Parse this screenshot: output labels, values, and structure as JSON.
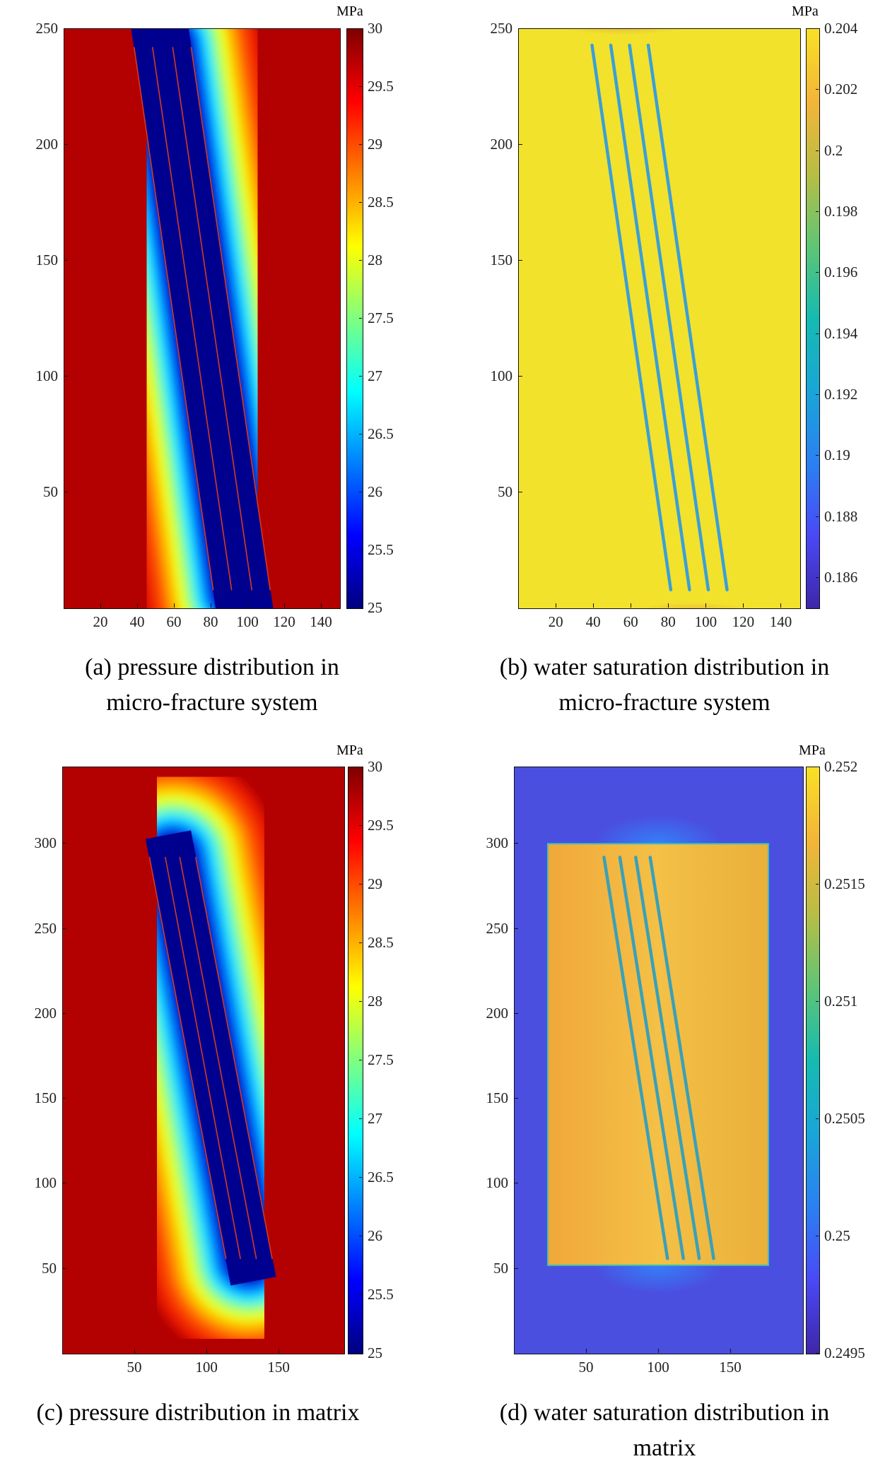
{
  "chart_data": [
    {
      "id": "a",
      "type": "heatmap",
      "caption": [
        "(a) pressure distribution in",
        "micro-fracture system"
      ],
      "colorbar_unit": "MPa",
      "colormap": "jet",
      "x_ticks": [
        20,
        40,
        60,
        80,
        100,
        120,
        140
      ],
      "y_ticks": [
        50,
        100,
        150,
        200,
        250
      ],
      "xlim": [
        0,
        150
      ],
      "ylim": [
        0,
        250
      ],
      "clim": [
        25,
        30
      ],
      "colorbar_ticks": [
        "25",
        "25.5",
        "26",
        "26.5",
        "27",
        "27.5",
        "28",
        "28.5",
        "29",
        "29.5",
        "30"
      ],
      "field": {
        "background_value": 30,
        "near_value": 25,
        "transition_width": 28
      },
      "fractures": [
        {
          "x1": 38,
          "y1": 242,
          "x2": 81,
          "y2": 8
        },
        {
          "x1": 48,
          "y1": 242,
          "x2": 91,
          "y2": 8
        },
        {
          "x1": 59,
          "y1": 242,
          "x2": 102,
          "y2": 8
        },
        {
          "x1": 69,
          "y1": 242,
          "x2": 112,
          "y2": 8
        }
      ],
      "fracture_color": "#d43a1e"
    },
    {
      "id": "b",
      "type": "heatmap",
      "caption": [
        "(b) water saturation distribution in",
        "micro-fracture system"
      ],
      "colorbar_unit": "MPa",
      "colormap": "parula",
      "x_ticks": [
        20,
        40,
        60,
        80,
        100,
        120,
        140
      ],
      "y_ticks": [
        50,
        100,
        150,
        200,
        250
      ],
      "xlim": [
        0,
        150
      ],
      "ylim": [
        0,
        250
      ],
      "clim": [
        0.185,
        0.204
      ],
      "colorbar_ticks": [
        "0.186",
        "0.188",
        "0.19",
        "0.192",
        "0.194",
        "0.196",
        "0.198",
        "0.2",
        "0.202",
        "0.204"
      ],
      "colorbar_tick_values": [
        0.186,
        0.188,
        0.19,
        0.192,
        0.194,
        0.196,
        0.198,
        0.2,
        0.202,
        0.204
      ],
      "background_color": "#f2e22c",
      "fractures": [
        {
          "x1": 39,
          "y1": 243,
          "x2": 81,
          "y2": 8
        },
        {
          "x1": 49,
          "y1": 243,
          "x2": 91,
          "y2": 8
        },
        {
          "x1": 59,
          "y1": 243,
          "x2": 101,
          "y2": 8
        },
        {
          "x1": 69,
          "y1": 243,
          "x2": 111,
          "y2": 8
        }
      ],
      "fracture_color": "#3a9fd8"
    },
    {
      "id": "c",
      "type": "heatmap",
      "caption": [
        "(c) pressure distribution in matrix"
      ],
      "colorbar_unit": "MPa",
      "colormap": "jet",
      "x_ticks": [
        50,
        100,
        150
      ],
      "y_ticks": [
        50,
        100,
        150,
        200,
        250,
        300
      ],
      "xlim": [
        0,
        195
      ],
      "ylim": [
        0,
        345
      ],
      "clim": [
        25,
        30
      ],
      "colorbar_ticks": [
        "25",
        "25.5",
        "26",
        "26.5",
        "27",
        "27.5",
        "28",
        "28.5",
        "29",
        "29.5",
        "30"
      ],
      "field": {
        "background_value": 30,
        "near_value": 25,
        "transition_width": 40
      },
      "fractures": [
        {
          "x1": 60,
          "y1": 292,
          "x2": 113,
          "y2": 56
        },
        {
          "x1": 71,
          "y1": 292,
          "x2": 123,
          "y2": 56
        },
        {
          "x1": 81,
          "y1": 292,
          "x2": 134,
          "y2": 56
        },
        {
          "x1": 92,
          "y1": 292,
          "x2": 145,
          "y2": 56
        }
      ],
      "fracture_color": "#d43a1e"
    },
    {
      "id": "d",
      "type": "heatmap",
      "caption": [
        "(d) water saturation distribution in",
        "matrix"
      ],
      "colorbar_unit": "MPa",
      "colormap": "parula",
      "x_ticks": [
        50,
        100,
        150
      ],
      "y_ticks": [
        50,
        100,
        150,
        200,
        250,
        300
      ],
      "xlim": [
        0,
        200
      ],
      "ylim": [
        0,
        345
      ],
      "clim": [
        0.2495,
        0.252
      ],
      "colorbar_ticks": [
        "0.2495",
        "0.25",
        "0.2505",
        "0.251",
        "0.2515",
        "0.252"
      ],
      "colorbar_tick_values": [
        0.2495,
        0.25,
        0.2505,
        0.251,
        0.2515,
        0.252
      ],
      "background_color": "#4a4fe0",
      "inner_region": {
        "x0": 23,
        "x1": 176,
        "y0": 52,
        "y1": 300,
        "color": "#f2b43c",
        "edge_color": "#3ec2b0"
      },
      "fractures": [
        {
          "x1": 62,
          "y1": 292,
          "x2": 106,
          "y2": 56
        },
        {
          "x1": 73,
          "y1": 292,
          "x2": 117,
          "y2": 56
        },
        {
          "x1": 84,
          "y1": 292,
          "x2": 128,
          "y2": 56
        },
        {
          "x1": 94,
          "y1": 292,
          "x2": 138,
          "y2": 56
        }
      ],
      "fracture_color": "#3aa0b8"
    }
  ]
}
